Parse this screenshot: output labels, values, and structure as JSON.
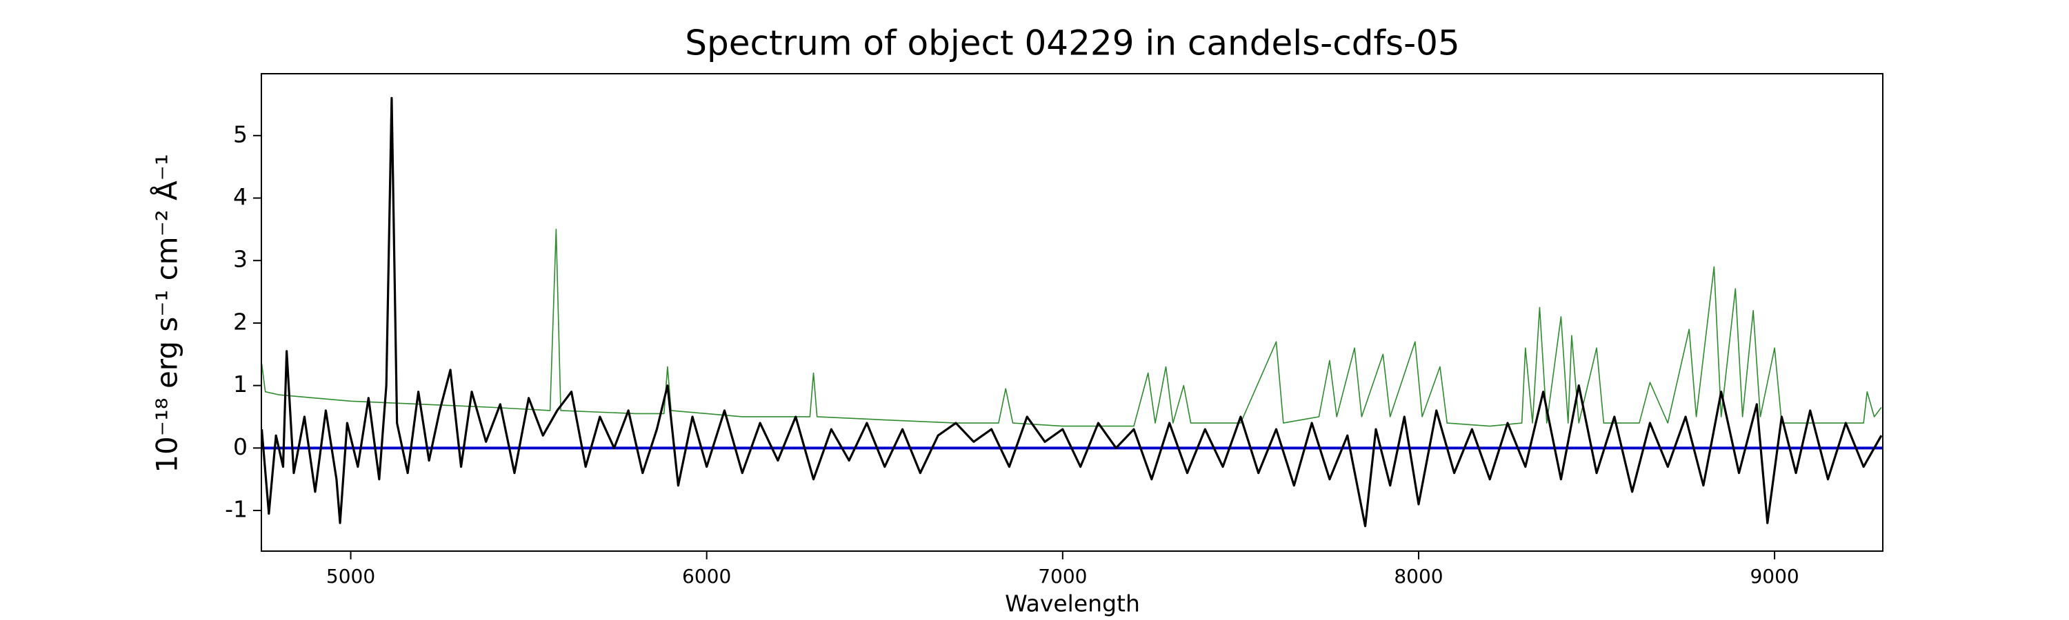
{
  "chart_data": {
    "type": "line",
    "title": "Spectrum of object 04229 in candels-cdfs-05",
    "xlabel": "Wavelength",
    "ylabel": "10⁻¹⁸ erg s⁻¹ cm⁻² Å⁻¹",
    "xlim": [
      4749,
      9304
    ],
    "ylim": [
      -1.65,
      5.99
    ],
    "xticks": [
      5000,
      6000,
      7000,
      8000,
      9000
    ],
    "yticks": [
      -1,
      0,
      1,
      2,
      3,
      4,
      5
    ],
    "grid": false,
    "series": [
      {
        "color": "#2e8b2e",
        "x": [
          4750,
          4760,
          4800,
          4900,
          5000,
          5200,
          5400,
          5560,
          5577,
          5590,
          5800,
          5880,
          5890,
          5900,
          6100,
          6290,
          6300,
          6310,
          6500,
          6700,
          6820,
          6840,
          6860,
          7000,
          7200,
          7240,
          7260,
          7290,
          7310,
          7340,
          7360,
          7500,
          7600,
          7620,
          7720,
          7750,
          7770,
          7820,
          7840,
          7900,
          7920,
          7990,
          8010,
          8060,
          8080,
          8200,
          8290,
          8300,
          8320,
          8340,
          8360,
          8400,
          8420,
          8430,
          8450,
          8500,
          8520,
          8620,
          8650,
          8700,
          8760,
          8780,
          8830,
          8850,
          8890,
          8910,
          8940,
          8960,
          9000,
          9020,
          9250,
          9260,
          9280,
          9300
        ],
        "values": [
          1.35,
          0.9,
          0.85,
          0.8,
          0.75,
          0.7,
          0.65,
          0.6,
          3.5,
          0.6,
          0.55,
          0.55,
          1.3,
          0.6,
          0.5,
          0.5,
          1.2,
          0.5,
          0.45,
          0.4,
          0.4,
          0.95,
          0.4,
          0.35,
          0.35,
          1.2,
          0.4,
          1.3,
          0.4,
          1.0,
          0.4,
          0.4,
          1.7,
          0.4,
          0.5,
          1.4,
          0.5,
          1.6,
          0.5,
          1.5,
          0.5,
          1.7,
          0.5,
          1.3,
          0.4,
          0.35,
          0.4,
          1.6,
          0.4,
          2.25,
          0.4,
          2.1,
          0.4,
          1.8,
          0.4,
          1.6,
          0.4,
          0.4,
          1.05,
          0.4,
          1.9,
          0.5,
          2.9,
          0.5,
          2.55,
          0.5,
          2.2,
          0.5,
          1.6,
          0.4,
          0.4,
          0.9,
          0.5,
          0.65
        ],
        "width": 1.6
      },
      {
        "color": "#0000cc",
        "x": [
          4749,
          9304
        ],
        "values": [
          0,
          0
        ],
        "width": 4
      },
      {
        "color": "#000000",
        "x": [
          4750,
          4770,
          4790,
          4810,
          4820,
          4840,
          4870,
          4900,
          4930,
          4960,
          4970,
          4990,
          5020,
          5050,
          5080,
          5100,
          5115,
          5130,
          5160,
          5190,
          5220,
          5250,
          5280,
          5310,
          5340,
          5380,
          5420,
          5460,
          5500,
          5540,
          5580,
          5620,
          5660,
          5700,
          5740,
          5780,
          5820,
          5860,
          5890,
          5920,
          5960,
          6000,
          6050,
          6100,
          6150,
          6200,
          6250,
          6300,
          6350,
          6400,
          6450,
          6500,
          6550,
          6600,
          6650,
          6700,
          6750,
          6800,
          6850,
          6900,
          6950,
          7000,
          7050,
          7100,
          7150,
          7200,
          7250,
          7300,
          7350,
          7400,
          7450,
          7500,
          7550,
          7600,
          7650,
          7700,
          7750,
          7800,
          7850,
          7880,
          7920,
          7960,
          8000,
          8050,
          8100,
          8150,
          8200,
          8250,
          8300,
          8350,
          8400,
          8450,
          8500,
          8550,
          8600,
          8650,
          8700,
          8750,
          8800,
          8850,
          8900,
          8950,
          8980,
          9020,
          9060,
          9100,
          9150,
          9200,
          9250,
          9300
        ],
        "values": [
          0.3,
          -1.05,
          0.2,
          -0.3,
          1.55,
          -0.4,
          0.5,
          -0.7,
          0.6,
          -0.5,
          -1.2,
          0.4,
          -0.3,
          0.8,
          -0.5,
          1.0,
          5.6,
          0.4,
          -0.4,
          0.9,
          -0.2,
          0.6,
          1.25,
          -0.3,
          0.9,
          0.1,
          0.7,
          -0.4,
          0.8,
          0.2,
          0.6,
          0.9,
          -0.3,
          0.5,
          0.0,
          0.6,
          -0.4,
          0.3,
          1.0,
          -0.6,
          0.5,
          -0.3,
          0.6,
          -0.4,
          0.4,
          -0.2,
          0.5,
          -0.5,
          0.3,
          -0.2,
          0.4,
          -0.3,
          0.3,
          -0.4,
          0.2,
          0.4,
          0.1,
          0.3,
          -0.3,
          0.5,
          0.1,
          0.3,
          -0.3,
          0.4,
          0.0,
          0.3,
          -0.5,
          0.4,
          -0.4,
          0.3,
          -0.3,
          0.5,
          -0.4,
          0.3,
          -0.6,
          0.4,
          -0.5,
          0.2,
          -1.25,
          0.3,
          -0.6,
          0.5,
          -0.9,
          0.6,
          -0.4,
          0.3,
          -0.5,
          0.4,
          -0.3,
          0.9,
          -0.5,
          1.0,
          -0.4,
          0.5,
          -0.7,
          0.4,
          -0.3,
          0.5,
          -0.6,
          0.9,
          -0.4,
          0.7,
          -1.2,
          0.5,
          -0.4,
          0.6,
          -0.5,
          0.4,
          -0.3,
          0.2
        ],
        "width": 3.2
      }
    ]
  }
}
